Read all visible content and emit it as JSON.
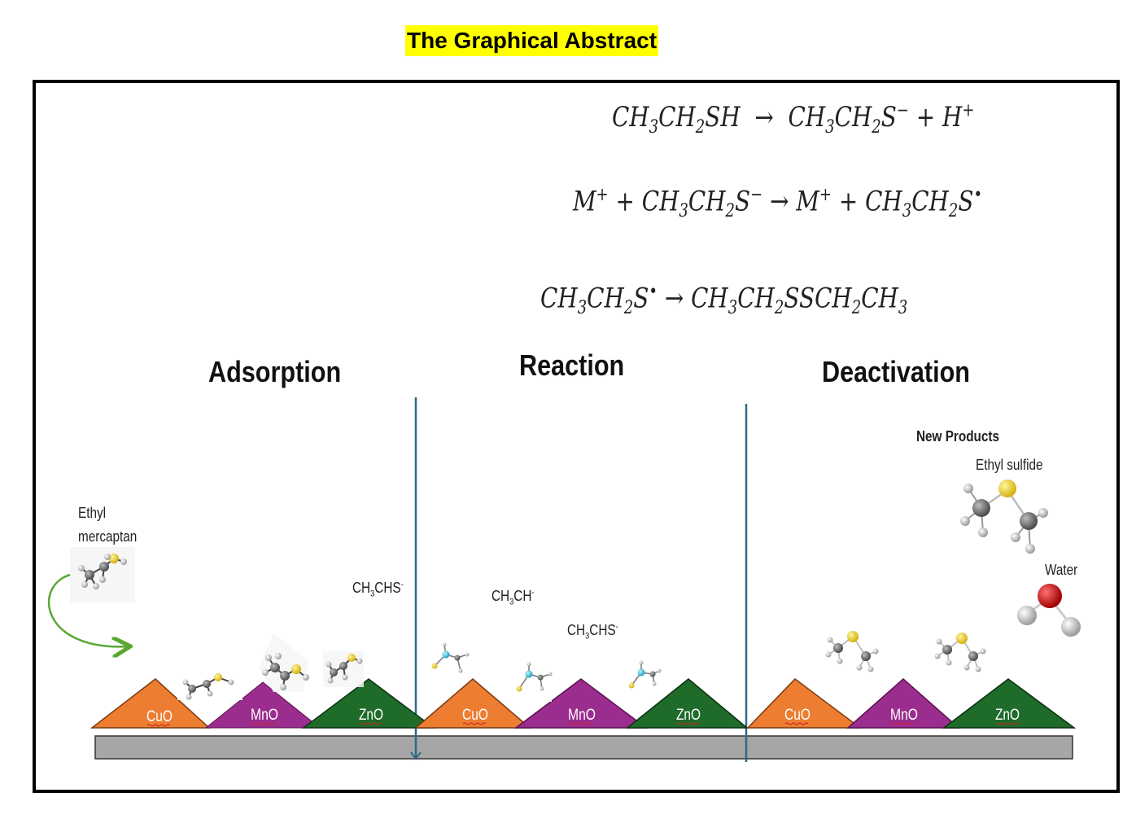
{
  "title": "The Graphical Abstract",
  "equations": {
    "eq1": {
      "lhs": "CH3CH2SH",
      "rhs": "CH3CH2S− + H+"
    },
    "eq2": {
      "lhs": "M+ + CH3CH2S−",
      "rhs": "M+ + CH3CH2S•"
    },
    "eq3": {
      "lhs": "CH3CH2S•",
      "rhs": "CH3CH2SSCH2CH3"
    }
  },
  "stages": {
    "adsorption": "Adsorption",
    "reaction": "Reaction",
    "deactivation": "Deactivation"
  },
  "labels": {
    "ethyl": "Ethyl",
    "mercaptan": "mercaptan",
    "intermediate_adsorption": "CH3CHS-",
    "intermediate_reaction_1": "CH3CH-",
    "intermediate_reaction_2": "CH3CHS-",
    "new_products": "New Products",
    "ethyl_sulfide": "Ethyl sulfide",
    "water": "Water"
  },
  "oxides": [
    "CuO",
    "MnO",
    "ZnO"
  ],
  "colors": {
    "title_highlight": "#ffff00",
    "cuo": "#ed7d31",
    "mno": "#9b2d8f",
    "zno": "#1f6b2a",
    "support": "#a6a6a6",
    "divider": "#2e6b84",
    "arrow": "#5aa832",
    "sulfur": "#e8c81a",
    "carbon": "#6e6e6e",
    "hydrogen": "#e6e6e6",
    "oxygen": "#d40000",
    "cyan_atom": "#3cc0d8"
  }
}
